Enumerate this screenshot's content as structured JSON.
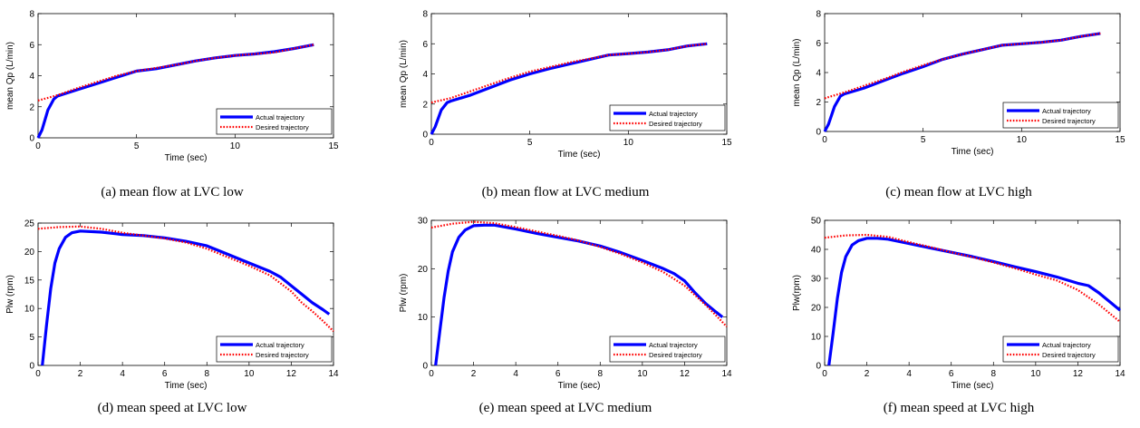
{
  "chart_data": [
    {
      "type": "line",
      "caption": "(a) mean flow at LVC low",
      "xlabel": "Time (sec)",
      "ylabel": "mean Qp (L/min)",
      "xlim": [
        0,
        15
      ],
      "ylim": [
        0,
        8
      ],
      "xticks": [
        0,
        5,
        10,
        15
      ],
      "yticks": [
        0,
        2,
        4,
        6,
        8
      ],
      "grid": false,
      "legend": "bottom-right",
      "series": [
        {
          "name": "Actual trajectory",
          "color": "#0000ff",
          "style": "solid",
          "x": [
            0,
            0.2,
            0.5,
            0.8,
            1,
            2,
            3,
            4,
            5,
            6,
            7,
            8,
            9,
            10,
            11,
            12,
            13,
            14
          ],
          "y": [
            0,
            0.5,
            1.8,
            2.5,
            2.7,
            3.1,
            3.5,
            3.9,
            4.3,
            4.45,
            4.7,
            4.95,
            5.15,
            5.3,
            5.4,
            5.55,
            5.75,
            6.0
          ]
        },
        {
          "name": "Desired trajectory",
          "color": "#ff0000",
          "style": "dotted",
          "x": [
            0,
            1,
            2,
            3,
            4,
            5,
            6,
            7,
            8,
            9,
            10,
            11,
            12,
            13,
            14
          ],
          "y": [
            2.4,
            2.75,
            3.2,
            3.6,
            4.0,
            4.3,
            4.5,
            4.7,
            4.95,
            5.15,
            5.3,
            5.4,
            5.5,
            5.75,
            6.0
          ]
        }
      ]
    },
    {
      "type": "line",
      "caption": "(b) mean flow at LVC medium",
      "xlabel": "Time (sec)",
      "ylabel": "mean Qp (L/min)",
      "xlim": [
        0,
        15
      ],
      "ylim": [
        0,
        8
      ],
      "xticks": [
        0,
        5,
        10,
        15
      ],
      "yticks": [
        0,
        2,
        4,
        6,
        8
      ],
      "grid": false,
      "legend": "bottom-right",
      "series": [
        {
          "name": "Actual trajectory",
          "color": "#0000ff",
          "style": "solid",
          "x": [
            0,
            0.2,
            0.5,
            0.8,
            1,
            2,
            3,
            4,
            5,
            6,
            7,
            8,
            9,
            10,
            11,
            12,
            13,
            14
          ],
          "y": [
            0,
            0.5,
            1.6,
            2.1,
            2.2,
            2.6,
            3.1,
            3.6,
            4.0,
            4.35,
            4.65,
            4.95,
            5.25,
            5.35,
            5.45,
            5.6,
            5.85,
            6.0
          ]
        },
        {
          "name": "Desired trajectory",
          "color": "#ff0000",
          "style": "dotted",
          "x": [
            0,
            1,
            2,
            3,
            4,
            5,
            6,
            7,
            8,
            9,
            10,
            11,
            12,
            13,
            14
          ],
          "y": [
            2.1,
            2.4,
            2.85,
            3.3,
            3.75,
            4.15,
            4.45,
            4.75,
            5.0,
            5.25,
            5.35,
            5.45,
            5.6,
            5.85,
            6.0
          ]
        }
      ]
    },
    {
      "type": "line",
      "caption": "(c) mean flow at LVC high",
      "xlabel": "Time (sec)",
      "ylabel": "mean Qp (L/min)",
      "xlim": [
        0,
        15
      ],
      "ylim": [
        0,
        8
      ],
      "xticks": [
        0,
        5,
        10,
        15
      ],
      "yticks": [
        0,
        2,
        4,
        6,
        8
      ],
      "grid": false,
      "legend": "bottom-right",
      "series": [
        {
          "name": "Actual trajectory",
          "color": "#0000ff",
          "style": "solid",
          "x": [
            0,
            0.2,
            0.5,
            0.8,
            1,
            2,
            3,
            4,
            5,
            6,
            7,
            8,
            9,
            10,
            11,
            12,
            13,
            14
          ],
          "y": [
            0,
            0.5,
            1.7,
            2.4,
            2.55,
            2.95,
            3.45,
            3.95,
            4.4,
            4.9,
            5.25,
            5.55,
            5.85,
            5.95,
            6.05,
            6.2,
            6.45,
            6.65
          ]
        },
        {
          "name": "Desired trajectory",
          "color": "#ff0000",
          "style": "dotted",
          "x": [
            0,
            1,
            2,
            3,
            4,
            5,
            6,
            7,
            8,
            9,
            10,
            11,
            12,
            13,
            14
          ],
          "y": [
            2.25,
            2.65,
            3.1,
            3.55,
            4.05,
            4.5,
            4.9,
            5.25,
            5.55,
            5.85,
            5.95,
            6.05,
            6.2,
            6.45,
            6.65
          ]
        }
      ]
    },
    {
      "type": "line",
      "caption": "(d) mean speed at LVC low",
      "xlabel": "Time (sec)",
      "ylabel": "Plw (rpm)",
      "xlim": [
        0,
        14
      ],
      "ylim": [
        0,
        25
      ],
      "xticks": [
        0,
        2,
        4,
        6,
        8,
        10,
        12,
        14
      ],
      "yticks": [
        0,
        5,
        10,
        15,
        20,
        25
      ],
      "grid": false,
      "legend": "bottom-right",
      "series": [
        {
          "name": "Actual trajectory",
          "color": "#0000ff",
          "style": "solid",
          "x": [
            0.2,
            0.4,
            0.6,
            0.8,
            1.0,
            1.3,
            1.6,
            2.0,
            3,
            4,
            5,
            6,
            7,
            8,
            9,
            10,
            11,
            11.5,
            12,
            12.5,
            13,
            13.5,
            13.8
          ],
          "y": [
            0,
            7,
            13.5,
            18,
            20.5,
            22.5,
            23.3,
            23.6,
            23.4,
            23.0,
            22.8,
            22.4,
            21.8,
            21.0,
            19.5,
            18.0,
            16.5,
            15.5,
            14.0,
            12.5,
            11.0,
            9.8,
            9.0
          ]
        },
        {
          "name": "Desired trajectory",
          "color": "#ff0000",
          "style": "dotted",
          "x": [
            0,
            1,
            2,
            3,
            4,
            5,
            6,
            7,
            8,
            9,
            10,
            11,
            12,
            12.5,
            13,
            13.5,
            14
          ],
          "y": [
            24.0,
            24.3,
            24.4,
            24.0,
            23.3,
            22.8,
            22.3,
            21.6,
            20.5,
            19.0,
            17.5,
            15.8,
            13.0,
            11.0,
            9.5,
            7.8,
            6.0
          ]
        }
      ]
    },
    {
      "type": "line",
      "caption": "(e) mean speed at LVC medium",
      "xlabel": "Time (sec)",
      "ylabel": "Plw (rpm)",
      "xlim": [
        0,
        14
      ],
      "ylim": [
        0,
        30
      ],
      "xticks": [
        0,
        2,
        4,
        6,
        8,
        10,
        12,
        14
      ],
      "yticks": [
        0,
        10,
        20,
        30
      ],
      "grid": false,
      "legend": "bottom-right",
      "series": [
        {
          "name": "Actual trajectory",
          "color": "#0000ff",
          "style": "solid",
          "x": [
            0.2,
            0.4,
            0.6,
            0.8,
            1.0,
            1.3,
            1.6,
            2.0,
            2.5,
            3,
            4,
            5,
            6,
            7,
            8,
            9,
            10,
            11,
            11.5,
            12,
            12.5,
            13,
            13.5,
            13.8
          ],
          "y": [
            0,
            7,
            14,
            19.5,
            23.5,
            26.5,
            28.0,
            28.9,
            29.0,
            29.0,
            28.2,
            27.3,
            26.5,
            25.7,
            24.7,
            23.3,
            21.7,
            20.0,
            19.0,
            17.5,
            15.0,
            12.8,
            11.0,
            10.0
          ]
        },
        {
          "name": "Desired trajectory",
          "color": "#ff0000",
          "style": "dotted",
          "x": [
            0,
            1,
            2,
            3,
            4,
            5,
            6,
            7,
            8,
            9,
            10,
            11,
            12,
            12.5,
            13,
            13.5,
            14
          ],
          "y": [
            28.5,
            29.3,
            29.7,
            29.4,
            28.6,
            27.7,
            26.8,
            25.8,
            24.5,
            23.0,
            21.3,
            19.3,
            16.5,
            14.5,
            12.5,
            10.3,
            8.0
          ]
        }
      ]
    },
    {
      "type": "line",
      "caption": "(f) mean speed at LVC high",
      "xlabel": "Time (sec)",
      "ylabel": "Plw(rpm)",
      "xlim": [
        0,
        14
      ],
      "ylim": [
        0,
        50
      ],
      "xticks": [
        0,
        2,
        4,
        6,
        8,
        10,
        12,
        14
      ],
      "yticks": [
        0,
        10,
        20,
        30,
        40,
        50
      ],
      "grid": false,
      "legend": "bottom-right",
      "series": [
        {
          "name": "Actual trajectory",
          "color": "#0000ff",
          "style": "solid",
          "x": [
            0.2,
            0.4,
            0.6,
            0.8,
            1.0,
            1.3,
            1.6,
            2.0,
            2.5,
            3,
            4,
            5,
            6,
            7,
            8,
            9,
            10,
            11,
            12,
            12.5,
            13,
            13.5,
            14
          ],
          "y": [
            0,
            11,
            23,
            32,
            37.5,
            41.5,
            43.0,
            43.8,
            43.8,
            43.5,
            42.0,
            40.5,
            39.0,
            37.5,
            35.8,
            34.0,
            32.3,
            30.5,
            28.3,
            27.5,
            25.0,
            22.0,
            19.0
          ]
        },
        {
          "name": "Desired trajectory",
          "color": "#ff0000",
          "style": "dotted",
          "x": [
            0,
            1,
            2,
            3,
            4,
            5,
            6,
            7,
            8,
            9,
            10,
            11,
            12,
            13,
            14
          ],
          "y": [
            44.0,
            44.8,
            45.0,
            44.3,
            42.5,
            40.8,
            39.0,
            37.3,
            35.5,
            33.5,
            31.3,
            29.3,
            26.0,
            21.0,
            15.0
          ]
        }
      ]
    }
  ]
}
